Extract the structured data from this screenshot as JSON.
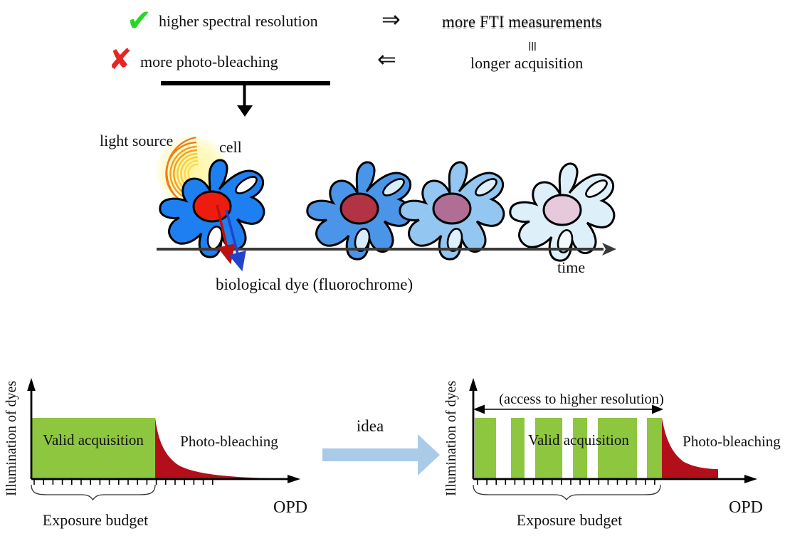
{
  "colors": {
    "check_green": "#25d825",
    "cross_red": "#e82525",
    "valid_green": "#8dc63f",
    "bleach_red": "#b30f1b",
    "idea_arrow_blue": "#a9cbe8",
    "time_axis_gray": "#3a3a3a",
    "emission_red": "#bb1111",
    "emission_blue": "#2244cc",
    "ray_orange": "#ef7d1a",
    "ray_yellow": "#ffd84d",
    "glow_yellow": "#fff59b"
  },
  "top": {
    "pro_icon": "✔",
    "pro_label": "higher spectral resolution",
    "con_icon": "✘",
    "con_label": "more photo-bleaching",
    "implies_forward": "⇒",
    "implies_back": "⇐",
    "equiv_symbol": "≡",
    "consequence": "more FTI measurements",
    "equivalent": "longer acquisition"
  },
  "timeline": {
    "light_source_label": "light source",
    "cell_label": "cell",
    "time_label": "time",
    "dye_label": "biological dye (fluorochrome)",
    "cells": [
      {
        "body": "#1e80f0",
        "nucleus": "#ee1c0e",
        "vacuole": "#ffffff"
      },
      {
        "body": "#4a95e8",
        "nucleus": "#b23343",
        "vacuole": "#d8edfb"
      },
      {
        "body": "#93c6f0",
        "nucleus": "#b06d96",
        "vacuole": "#ddeffa"
      },
      {
        "body": "#ddf0fa",
        "nucleus": "#e7c9de",
        "vacuole": "#f2fafd"
      }
    ]
  },
  "idea": {
    "label": "idea"
  },
  "charts": {
    "left": {
      "ylabel": "Illumination of dyes",
      "xlabel": "OPD",
      "valid_label": "Valid acquisition",
      "bleach_label": "Photo-bleaching",
      "brace_label": "Exposure budget",
      "tick_count": 20,
      "valid_segments": [
        [
          0,
          1
        ]
      ]
    },
    "right": {
      "ylabel": "Illumination of dyes",
      "xlabel": "OPD",
      "annotation": "(access to higher resolution)",
      "valid_label": "Valid acquisition",
      "bleach_label": "Photo-bleaching",
      "brace_label": "Exposure budget",
      "tick_count": 20,
      "valid_segments": [
        [
          0,
          0.114
        ],
        [
          0.194,
          0.266
        ],
        [
          0.323,
          0.468
        ],
        [
          0.525,
          0.601
        ],
        [
          0.658,
          0.867
        ],
        [
          0.92,
          1.0
        ]
      ]
    }
  }
}
